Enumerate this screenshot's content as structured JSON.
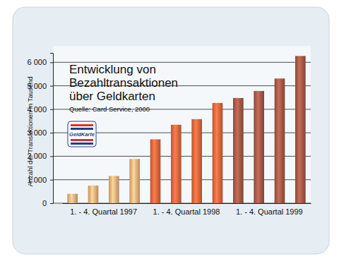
{
  "chart_data": {
    "type": "bar",
    "title": "Entwicklung von Bezahltransaktionen über Geldkarten",
    "subtitle": "Quelle: Card Service, 2000",
    "y_label": "Anzahl der Transaktionen in Tausend",
    "annotations": [
      "GeldKarte"
    ],
    "categories": [
      "1. - 4. Quartal 1997",
      null,
      null,
      null,
      "1. - 4. Quartal 1998",
      null,
      null,
      null,
      "1. - 4. Quartal 1999",
      null,
      null,
      null
    ],
    "values": [
      400,
      750,
      1160,
      1880,
      2720,
      3340,
      3580,
      4270,
      4480,
      4780,
      5310,
      6270
    ],
    "colors": [
      "#f3b57e",
      "#f3b57e",
      "#f3b57e",
      "#f3b57e",
      "#e8693d",
      "#e8693d",
      "#e8693d",
      "#e8693d",
      "#a85a48",
      "#a85a48",
      "#a85a48",
      "#a85a48"
    ],
    "ylim": [
      0,
      6400
    ],
    "yticks": [
      0,
      {
        "value": 1000,
        "label": "1 000"
      },
      {
        "value": 2000,
        "label": "2 000"
      },
      {
        "value": 3000,
        "label": "3 000"
      },
      {
        "value": 4000,
        "label": "4 000"
      },
      {
        "value": 5000,
        "label": "5 000"
      },
      {
        "value": 6000,
        "label": "6 000"
      }
    ],
    "grid": true
  }
}
